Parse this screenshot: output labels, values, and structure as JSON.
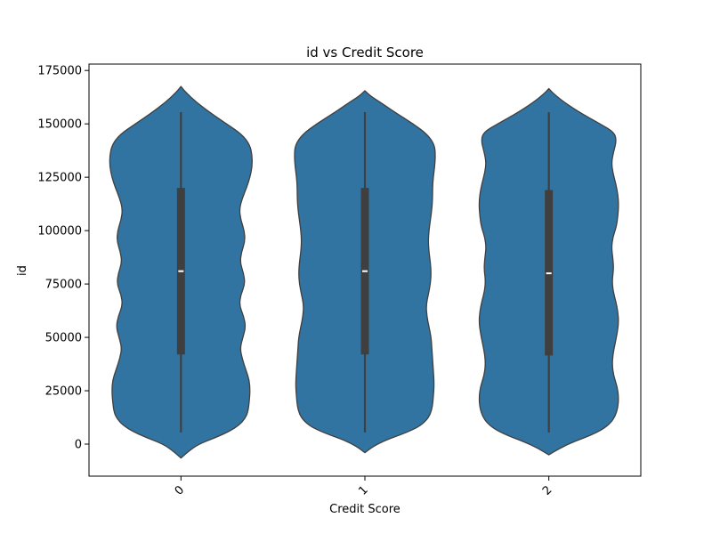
{
  "chart_data": {
    "type": "violin",
    "title": "id vs Credit Score",
    "xlabel": "Credit Score",
    "ylabel": "id",
    "categories": [
      "0",
      "1",
      "2"
    ],
    "ylim": [
      -15000,
      178000
    ],
    "yticks": [
      0,
      25000,
      50000,
      75000,
      100000,
      125000,
      150000,
      175000
    ],
    "ytick_labels": [
      "0",
      "25000",
      "50000",
      "75000",
      "100000",
      "125000",
      "150000",
      "175000"
    ],
    "x_tick_rotation": 45,
    "grid": false,
    "violins": [
      {
        "category": "0",
        "min": 5500,
        "q1": 42000,
        "median": 81000,
        "q3": 120000,
        "max": 155500,
        "kde_extent": [
          -6500,
          167500
        ],
        "density": [
          [
            -6500,
            0.0
          ],
          [
            -3000,
            0.12
          ],
          [
            0,
            0.25
          ],
          [
            3000,
            0.48
          ],
          [
            6000,
            0.68
          ],
          [
            9000,
            0.82
          ],
          [
            12000,
            0.9
          ],
          [
            15000,
            0.94
          ],
          [
            20000,
            0.96
          ],
          [
            25000,
            0.97
          ],
          [
            30000,
            0.96
          ],
          [
            35000,
            0.91
          ],
          [
            40000,
            0.86
          ],
          [
            45000,
            0.83
          ],
          [
            50000,
            0.87
          ],
          [
            55000,
            0.91
          ],
          [
            60000,
            0.88
          ],
          [
            65000,
            0.82
          ],
          [
            70000,
            0.84
          ],
          [
            75000,
            0.9
          ],
          [
            80000,
            0.88
          ],
          [
            85000,
            0.83
          ],
          [
            90000,
            0.85
          ],
          [
            95000,
            0.9
          ],
          [
            100000,
            0.89
          ],
          [
            105000,
            0.84
          ],
          [
            110000,
            0.82
          ],
          [
            115000,
            0.86
          ],
          [
            120000,
            0.92
          ],
          [
            125000,
            0.97
          ],
          [
            130000,
            1.0
          ],
          [
            135000,
            1.0
          ],
          [
            140000,
            0.97
          ],
          [
            145000,
            0.86
          ],
          [
            150000,
            0.64
          ],
          [
            155000,
            0.42
          ],
          [
            160000,
            0.22
          ],
          [
            165000,
            0.06
          ],
          [
            167500,
            0.0
          ]
        ]
      },
      {
        "category": "1",
        "min": 5500,
        "q1": 42000,
        "median": 81000,
        "q3": 120000,
        "max": 155500,
        "kde_extent": [
          -4000,
          165500
        ],
        "density": [
          [
            -4000,
            0.0
          ],
          [
            -1000,
            0.12
          ],
          [
            2000,
            0.3
          ],
          [
            5000,
            0.55
          ],
          [
            8000,
            0.75
          ],
          [
            11000,
            0.86
          ],
          [
            14000,
            0.92
          ],
          [
            18000,
            0.95
          ],
          [
            22000,
            0.96
          ],
          [
            26000,
            0.97
          ],
          [
            30000,
            0.97
          ],
          [
            35000,
            0.96
          ],
          [
            40000,
            0.95
          ],
          [
            45000,
            0.94
          ],
          [
            50000,
            0.93
          ],
          [
            55000,
            0.9
          ],
          [
            60000,
            0.87
          ],
          [
            65000,
            0.86
          ],
          [
            70000,
            0.89
          ],
          [
            75000,
            0.92
          ],
          [
            80000,
            0.93
          ],
          [
            85000,
            0.92
          ],
          [
            90000,
            0.9
          ],
          [
            95000,
            0.89
          ],
          [
            100000,
            0.9
          ],
          [
            105000,
            0.92
          ],
          [
            110000,
            0.94
          ],
          [
            115000,
            0.95
          ],
          [
            120000,
            0.95
          ],
          [
            125000,
            0.96
          ],
          [
            130000,
            0.98
          ],
          [
            135000,
            0.99
          ],
          [
            140000,
            0.98
          ],
          [
            145000,
            0.88
          ],
          [
            150000,
            0.68
          ],
          [
            155000,
            0.44
          ],
          [
            160000,
            0.22
          ],
          [
            163000,
            0.08
          ],
          [
            165500,
            0.0
          ]
        ]
      },
      {
        "category": "2",
        "min": 5500,
        "q1": 41500,
        "median": 80000,
        "q3": 119000,
        "max": 155500,
        "kde_extent": [
          -5000,
          166500
        ],
        "density": [
          [
            -5000,
            0.0
          ],
          [
            -2000,
            0.15
          ],
          [
            1000,
            0.34
          ],
          [
            4000,
            0.58
          ],
          [
            7000,
            0.76
          ],
          [
            10000,
            0.87
          ],
          [
            13000,
            0.93
          ],
          [
            17000,
            0.97
          ],
          [
            22000,
            0.98
          ],
          [
            27000,
            0.96
          ],
          [
            32000,
            0.91
          ],
          [
            37000,
            0.89
          ],
          [
            42000,
            0.9
          ],
          [
            47000,
            0.93
          ],
          [
            52000,
            0.96
          ],
          [
            57000,
            0.98
          ],
          [
            62000,
            0.97
          ],
          [
            67000,
            0.94
          ],
          [
            72000,
            0.9
          ],
          [
            77000,
            0.89
          ],
          [
            82000,
            0.91
          ],
          [
            87000,
            0.9
          ],
          [
            92000,
            0.88
          ],
          [
            97000,
            0.9
          ],
          [
            102000,
            0.95
          ],
          [
            107000,
            0.97
          ],
          [
            112000,
            0.98
          ],
          [
            117000,
            0.97
          ],
          [
            122000,
            0.94
          ],
          [
            127000,
            0.9
          ],
          [
            132000,
            0.88
          ],
          [
            137000,
            0.91
          ],
          [
            142000,
            0.95
          ],
          [
            146000,
            0.92
          ],
          [
            150000,
            0.72
          ],
          [
            155000,
            0.45
          ],
          [
            160000,
            0.22
          ],
          [
            164000,
            0.07
          ],
          [
            166500,
            0.0
          ]
        ]
      }
    ]
  },
  "style": {
    "violin_fill": "#3274a1",
    "violin_stroke": "#3f3f3f",
    "box_color": "#3f3f3f",
    "median_color": "#ffffff",
    "axes_color": "#000000",
    "background": "#ffffff"
  }
}
